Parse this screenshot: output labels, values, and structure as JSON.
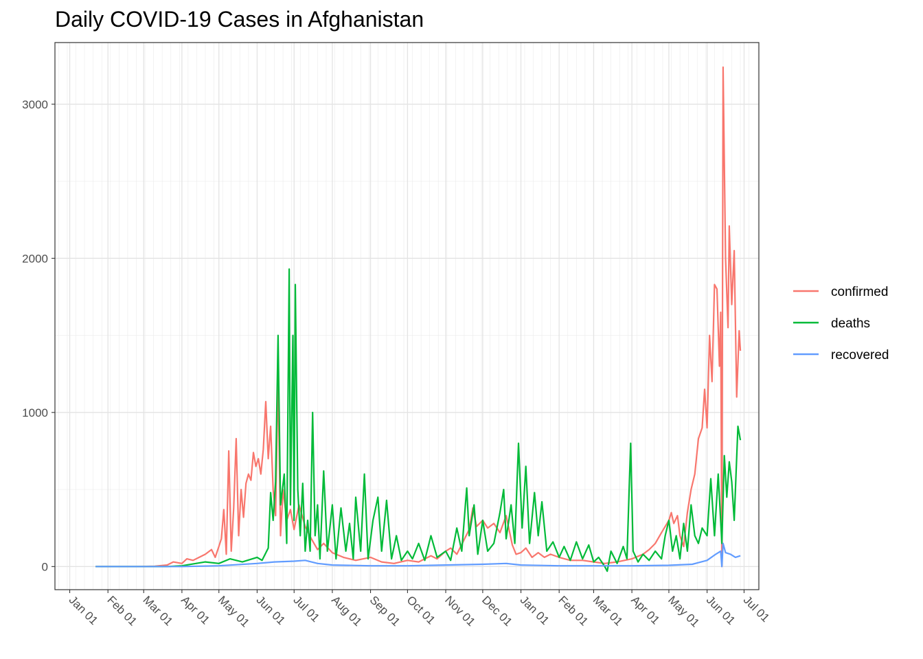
{
  "chart_data": {
    "type": "line",
    "title": "Daily COVID-19 Cases in Afghanistan",
    "xlabel": "",
    "ylabel": "",
    "x_start": "2020-01-22",
    "x_end": "2021-07-03",
    "ylim": [
      -150,
      3400
    ],
    "yticks": [
      0,
      1000,
      2000,
      3000
    ],
    "xtick_labels": [
      "Jan 01",
      "Feb 01",
      "Mar 01",
      "Apr 01",
      "May 01",
      "Jun 01",
      "Jul 01",
      "Aug 01",
      "Sep 01",
      "Oct 01",
      "Nov 01",
      "Dec 01",
      "Jan 01",
      "Feb 01",
      "Mar 01",
      "Apr 01",
      "May 01",
      "Jun 01",
      "Jul 01"
    ],
    "xtick_dates": [
      "2020-01-01",
      "2020-02-01",
      "2020-03-01",
      "2020-04-01",
      "2020-05-01",
      "2020-06-01",
      "2020-07-01",
      "2020-08-01",
      "2020-09-01",
      "2020-10-01",
      "2020-11-01",
      "2020-12-01",
      "2021-01-01",
      "2021-02-01",
      "2021-03-01",
      "2021-04-01",
      "2021-05-01",
      "2021-06-01",
      "2021-07-01"
    ],
    "grid": true,
    "legend_position": "right",
    "series": [
      {
        "name": "confirmed",
        "color": "#F8766D",
        "points": [
          [
            "2020-01-22",
            0
          ],
          [
            "2020-02-24",
            0
          ],
          [
            "2020-03-10",
            2
          ],
          [
            "2020-03-20",
            10
          ],
          [
            "2020-03-25",
            30
          ],
          [
            "2020-04-01",
            20
          ],
          [
            "2020-04-05",
            50
          ],
          [
            "2020-04-10",
            40
          ],
          [
            "2020-04-15",
            60
          ],
          [
            "2020-04-20",
            80
          ],
          [
            "2020-04-25",
            110
          ],
          [
            "2020-04-28",
            60
          ],
          [
            "2020-05-01",
            130
          ],
          [
            "2020-05-03",
            180
          ],
          [
            "2020-05-05",
            370
          ],
          [
            "2020-05-07",
            80
          ],
          [
            "2020-05-09",
            750
          ],
          [
            "2020-05-11",
            100
          ],
          [
            "2020-05-13",
            380
          ],
          [
            "2020-05-15",
            830
          ],
          [
            "2020-05-17",
            200
          ],
          [
            "2020-05-19",
            500
          ],
          [
            "2020-05-21",
            320
          ],
          [
            "2020-05-23",
            540
          ],
          [
            "2020-05-25",
            600
          ],
          [
            "2020-05-27",
            560
          ],
          [
            "2020-05-29",
            740
          ],
          [
            "2020-05-31",
            650
          ],
          [
            "2020-06-02",
            700
          ],
          [
            "2020-06-04",
            600
          ],
          [
            "2020-06-06",
            760
          ],
          [
            "2020-06-08",
            1070
          ],
          [
            "2020-06-10",
            700
          ],
          [
            "2020-06-12",
            910
          ],
          [
            "2020-06-14",
            500
          ],
          [
            "2020-06-16",
            330
          ],
          [
            "2020-06-18",
            1240
          ],
          [
            "2020-06-20",
            200
          ],
          [
            "2020-06-22",
            500
          ],
          [
            "2020-06-25",
            300
          ],
          [
            "2020-06-28",
            370
          ],
          [
            "2020-07-01",
            240
          ],
          [
            "2020-07-05",
            400
          ],
          [
            "2020-07-10",
            260
          ],
          [
            "2020-07-15",
            180
          ],
          [
            "2020-07-20",
            110
          ],
          [
            "2020-07-25",
            150
          ],
          [
            "2020-08-01",
            90
          ],
          [
            "2020-08-10",
            60
          ],
          [
            "2020-08-20",
            40
          ],
          [
            "2020-09-01",
            60
          ],
          [
            "2020-09-10",
            30
          ],
          [
            "2020-09-20",
            20
          ],
          [
            "2020-10-01",
            40
          ],
          [
            "2020-10-10",
            30
          ],
          [
            "2020-10-20",
            70
          ],
          [
            "2020-10-25",
            50
          ],
          [
            "2020-11-01",
            100
          ],
          [
            "2020-11-05",
            120
          ],
          [
            "2020-11-10",
            80
          ],
          [
            "2020-11-15",
            160
          ],
          [
            "2020-11-20",
            240
          ],
          [
            "2020-11-23",
            380
          ],
          [
            "2020-11-26",
            260
          ],
          [
            "2020-12-01",
            300
          ],
          [
            "2020-12-05",
            250
          ],
          [
            "2020-12-10",
            280
          ],
          [
            "2020-12-15",
            220
          ],
          [
            "2020-12-20",
            330
          ],
          [
            "2020-12-25",
            140
          ],
          [
            "2020-12-28",
            80
          ],
          [
            "2021-01-01",
            90
          ],
          [
            "2021-01-05",
            120
          ],
          [
            "2021-01-10",
            60
          ],
          [
            "2021-01-15",
            90
          ],
          [
            "2021-01-20",
            60
          ],
          [
            "2021-01-25",
            80
          ],
          [
            "2021-02-01",
            60
          ],
          [
            "2021-02-10",
            40
          ],
          [
            "2021-02-20",
            40
          ],
          [
            "2021-03-01",
            30
          ],
          [
            "2021-03-10",
            20
          ],
          [
            "2021-03-20",
            30
          ],
          [
            "2021-04-01",
            50
          ],
          [
            "2021-04-10",
            80
          ],
          [
            "2021-04-15",
            110
          ],
          [
            "2021-04-20",
            150
          ],
          [
            "2021-04-25",
            220
          ],
          [
            "2021-05-01",
            300
          ],
          [
            "2021-05-03",
            350
          ],
          [
            "2021-05-05",
            280
          ],
          [
            "2021-05-08",
            330
          ],
          [
            "2021-05-10",
            200
          ],
          [
            "2021-05-13",
            130
          ],
          [
            "2021-05-16",
            350
          ],
          [
            "2021-05-19",
            500
          ],
          [
            "2021-05-22",
            600
          ],
          [
            "2021-05-25",
            830
          ],
          [
            "2021-05-28",
            900
          ],
          [
            "2021-05-30",
            1150
          ],
          [
            "2021-06-01",
            900
          ],
          [
            "2021-06-03",
            1500
          ],
          [
            "2021-06-05",
            1200
          ],
          [
            "2021-06-07",
            1830
          ],
          [
            "2021-06-09",
            1800
          ],
          [
            "2021-06-11",
            1300
          ],
          [
            "2021-06-12",
            1650
          ],
          [
            "2021-06-13",
            0
          ],
          [
            "2021-06-14",
            3240
          ],
          [
            "2021-06-16",
            2000
          ],
          [
            "2021-06-18",
            1550
          ],
          [
            "2021-06-19",
            2210
          ],
          [
            "2021-06-21",
            1700
          ],
          [
            "2021-06-23",
            2050
          ],
          [
            "2021-06-25",
            1100
          ],
          [
            "2021-06-27",
            1530
          ],
          [
            "2021-06-28",
            1400
          ]
        ]
      },
      {
        "name": "deaths",
        "color": "#00BA38",
        "points": [
          [
            "2020-01-22",
            0
          ],
          [
            "2020-03-20",
            0
          ],
          [
            "2020-04-01",
            5
          ],
          [
            "2020-04-20",
            30
          ],
          [
            "2020-05-01",
            20
          ],
          [
            "2020-05-10",
            50
          ],
          [
            "2020-05-20",
            30
          ],
          [
            "2020-06-01",
            60
          ],
          [
            "2020-06-05",
            40
          ],
          [
            "2020-06-10",
            120
          ],
          [
            "2020-06-12",
            480
          ],
          [
            "2020-06-14",
            300
          ],
          [
            "2020-06-16",
            550
          ],
          [
            "2020-06-18",
            1500
          ],
          [
            "2020-06-20",
            400
          ],
          [
            "2020-06-23",
            600
          ],
          [
            "2020-06-25",
            150
          ],
          [
            "2020-06-27",
            1930
          ],
          [
            "2020-06-28",
            400
          ],
          [
            "2020-06-30",
            1500
          ],
          [
            "2020-07-01",
            300
          ],
          [
            "2020-07-02",
            1830
          ],
          [
            "2020-07-04",
            500
          ],
          [
            "2020-07-06",
            200
          ],
          [
            "2020-07-08",
            540
          ],
          [
            "2020-07-10",
            100
          ],
          [
            "2020-07-12",
            300
          ],
          [
            "2020-07-14",
            100
          ],
          [
            "2020-07-16",
            1000
          ],
          [
            "2020-07-18",
            200
          ],
          [
            "2020-07-20",
            400
          ],
          [
            "2020-07-22",
            50
          ],
          [
            "2020-07-25",
            620
          ],
          [
            "2020-07-28",
            100
          ],
          [
            "2020-08-01",
            400
          ],
          [
            "2020-08-04",
            50
          ],
          [
            "2020-08-08",
            380
          ],
          [
            "2020-08-12",
            100
          ],
          [
            "2020-08-15",
            280
          ],
          [
            "2020-08-18",
            50
          ],
          [
            "2020-08-20",
            450
          ],
          [
            "2020-08-24",
            100
          ],
          [
            "2020-08-27",
            600
          ],
          [
            "2020-08-30",
            50
          ],
          [
            "2020-09-03",
            300
          ],
          [
            "2020-09-07",
            450
          ],
          [
            "2020-09-10",
            100
          ],
          [
            "2020-09-14",
            430
          ],
          [
            "2020-09-18",
            50
          ],
          [
            "2020-09-22",
            200
          ],
          [
            "2020-09-26",
            40
          ],
          [
            "2020-10-01",
            100
          ],
          [
            "2020-10-05",
            50
          ],
          [
            "2020-10-10",
            150
          ],
          [
            "2020-10-15",
            40
          ],
          [
            "2020-10-20",
            200
          ],
          [
            "2020-10-25",
            60
          ],
          [
            "2020-11-01",
            100
          ],
          [
            "2020-11-05",
            40
          ],
          [
            "2020-11-10",
            250
          ],
          [
            "2020-11-14",
            100
          ],
          [
            "2020-11-18",
            510
          ],
          [
            "2020-11-20",
            200
          ],
          [
            "2020-11-24",
            400
          ],
          [
            "2020-11-27",
            80
          ],
          [
            "2020-12-01",
            300
          ],
          [
            "2020-12-05",
            100
          ],
          [
            "2020-12-10",
            150
          ],
          [
            "2020-12-15",
            350
          ],
          [
            "2020-12-18",
            500
          ],
          [
            "2020-12-20",
            180
          ],
          [
            "2020-12-24",
            400
          ],
          [
            "2020-12-27",
            150
          ],
          [
            "2020-12-30",
            800
          ],
          [
            "2021-01-02",
            250
          ],
          [
            "2021-01-05",
            650
          ],
          [
            "2021-01-08",
            150
          ],
          [
            "2021-01-12",
            480
          ],
          [
            "2021-01-15",
            200
          ],
          [
            "2021-01-18",
            420
          ],
          [
            "2021-01-22",
            100
          ],
          [
            "2021-01-27",
            160
          ],
          [
            "2021-02-01",
            60
          ],
          [
            "2021-02-05",
            130
          ],
          [
            "2021-02-10",
            40
          ],
          [
            "2021-02-15",
            160
          ],
          [
            "2021-02-20",
            50
          ],
          [
            "2021-02-25",
            140
          ],
          [
            "2021-03-01",
            30
          ],
          [
            "2021-03-05",
            60
          ],
          [
            "2021-03-10",
            0
          ],
          [
            "2021-03-12",
            -30
          ],
          [
            "2021-03-15",
            100
          ],
          [
            "2021-03-20",
            20
          ],
          [
            "2021-03-25",
            130
          ],
          [
            "2021-03-28",
            50
          ],
          [
            "2021-03-31",
            800
          ],
          [
            "2021-04-02",
            100
          ],
          [
            "2021-04-06",
            30
          ],
          [
            "2021-04-10",
            80
          ],
          [
            "2021-04-15",
            40
          ],
          [
            "2021-04-20",
            100
          ],
          [
            "2021-04-25",
            50
          ],
          [
            "2021-04-28",
            200
          ],
          [
            "2021-05-01",
            300
          ],
          [
            "2021-05-04",
            100
          ],
          [
            "2021-05-07",
            200
          ],
          [
            "2021-05-10",
            50
          ],
          [
            "2021-05-13",
            280
          ],
          [
            "2021-05-16",
            100
          ],
          [
            "2021-05-19",
            400
          ],
          [
            "2021-05-22",
            200
          ],
          [
            "2021-05-25",
            150
          ],
          [
            "2021-05-28",
            250
          ],
          [
            "2021-06-01",
            200
          ],
          [
            "2021-06-04",
            570
          ],
          [
            "2021-06-07",
            200
          ],
          [
            "2021-06-10",
            600
          ],
          [
            "2021-06-13",
            150
          ],
          [
            "2021-06-15",
            720
          ],
          [
            "2021-06-17",
            450
          ],
          [
            "2021-06-19",
            680
          ],
          [
            "2021-06-21",
            550
          ],
          [
            "2021-06-23",
            300
          ],
          [
            "2021-06-26",
            910
          ],
          [
            "2021-06-28",
            820
          ]
        ]
      },
      {
        "name": "recovered",
        "color": "#619CFF",
        "points": [
          [
            "2020-01-22",
            0
          ],
          [
            "2020-04-01",
            0
          ],
          [
            "2020-05-01",
            5
          ],
          [
            "2020-06-01",
            20
          ],
          [
            "2020-06-15",
            30
          ],
          [
            "2020-07-01",
            35
          ],
          [
            "2020-07-10",
            40
          ],
          [
            "2020-07-20",
            20
          ],
          [
            "2020-08-01",
            10
          ],
          [
            "2020-09-01",
            5
          ],
          [
            "2020-10-01",
            5
          ],
          [
            "2020-11-01",
            10
          ],
          [
            "2020-12-01",
            15
          ],
          [
            "2020-12-20",
            20
          ],
          [
            "2021-01-01",
            10
          ],
          [
            "2021-02-01",
            5
          ],
          [
            "2021-03-01",
            5
          ],
          [
            "2021-04-01",
            5
          ],
          [
            "2021-05-01",
            8
          ],
          [
            "2021-05-20",
            15
          ],
          [
            "2021-06-01",
            40
          ],
          [
            "2021-06-08",
            80
          ],
          [
            "2021-06-12",
            100
          ],
          [
            "2021-06-13",
            0
          ],
          [
            "2021-06-14",
            150
          ],
          [
            "2021-06-16",
            90
          ],
          [
            "2021-06-20",
            80
          ],
          [
            "2021-06-24",
            60
          ],
          [
            "2021-06-28",
            70
          ]
        ]
      }
    ]
  }
}
